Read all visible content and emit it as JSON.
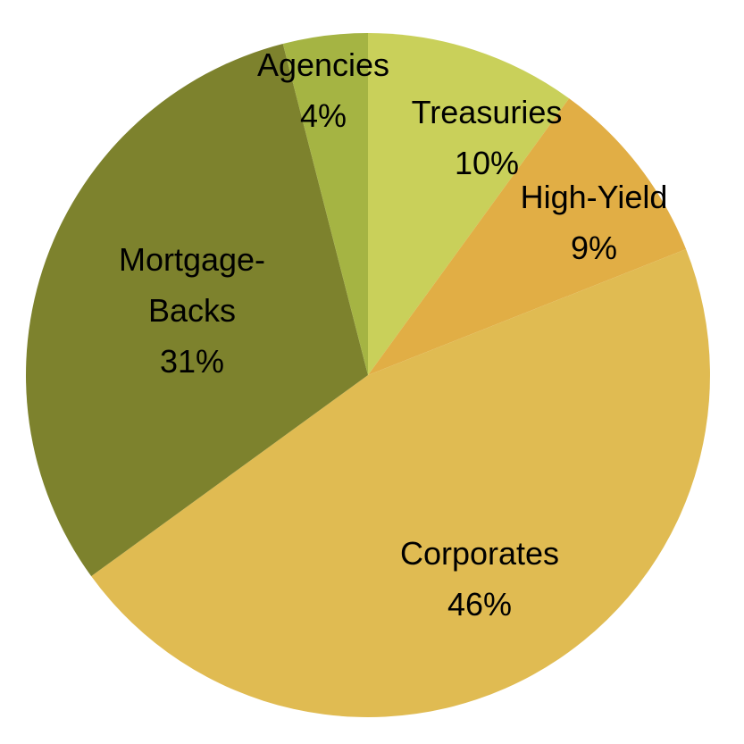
{
  "chart_data": {
    "type": "pie",
    "title": "",
    "start_angle_deg": 0,
    "direction": "clockwise",
    "slices": [
      {
        "name": "Treasuries",
        "label_lines": [
          "Treasuries"
        ],
        "value": 10,
        "value_label": "10%",
        "color": "#c9d05a"
      },
      {
        "name": "High-Yield",
        "label_lines": [
          "High-Yield"
        ],
        "value": 9,
        "value_label": "9%",
        "color": "#e1ae45"
      },
      {
        "name": "Corporates",
        "label_lines": [
          "Corporates"
        ],
        "value": 46,
        "value_label": "46%",
        "color": "#e0bb52"
      },
      {
        "name": "Mortgage-Backs",
        "label_lines": [
          "Mortgage-",
          "Backs"
        ],
        "value": 31,
        "value_label": "31%",
        "color": "#7d822d"
      },
      {
        "name": "Agencies",
        "label_lines": [
          "Agencies"
        ],
        "value": 4,
        "value_label": "4%",
        "color": "#a5b443"
      }
    ]
  }
}
